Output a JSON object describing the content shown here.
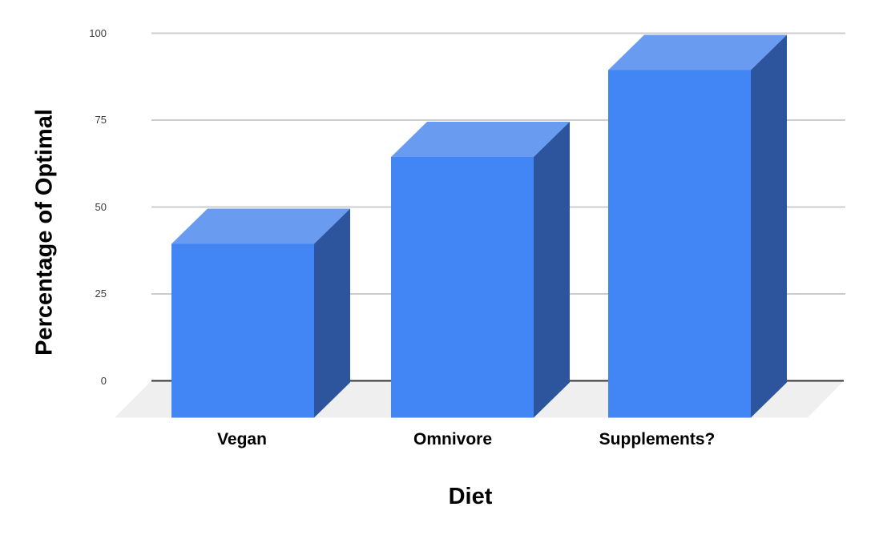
{
  "chart_data": {
    "type": "bar",
    "projection": "3d-column",
    "categories": [
      "Vegan",
      "Omnivore",
      "Supplements?"
    ],
    "values": [
      50,
      75,
      100
    ],
    "title": "",
    "xlabel": "Diet",
    "ylabel": "Percentage of Optimal",
    "ylim": [
      0,
      100
    ],
    "yticks": [
      0,
      25,
      50,
      75,
      100
    ],
    "grid": true,
    "legend": "none",
    "colors": {
      "bar_front": "#4285f4",
      "bar_top": "#699cf1",
      "bar_side": "#2c559e",
      "floor": "#efefef",
      "gridline": "#cccccc",
      "zero_line": "#333333",
      "tick_text": "#3c3c3c",
      "label_text": "#000000"
    }
  }
}
